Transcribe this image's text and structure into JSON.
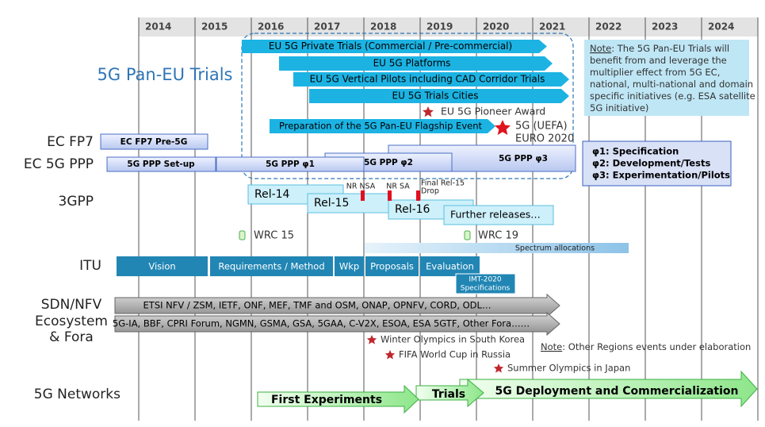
{
  "years": [
    "2014",
    "2015",
    "2016",
    "2017",
    "2018",
    "2019",
    "2020",
    "2021",
    "2022",
    "2023",
    "2024"
  ],
  "rows": {
    "pan_eu": "5G Pan-EU Trials",
    "fp7": "EC FP7",
    "ppp": "EC 5G PPP",
    "gpp": "3GPP",
    "itu": "ITU",
    "sdn": [
      "SDN/NFV",
      "Ecosystem",
      "& Fora"
    ],
    "networks": "5G Networks"
  },
  "trials": [
    "EU 5G Private Trials (Commercial / Pre-commercial)",
    "EU 5G Platforms",
    "EU 5G Vertical Pilots including CAD Corridor Trials",
    "EU 5G Trials Cities"
  ],
  "pioneer": "EU 5G Pioneer Award",
  "flagship": "Preparation of the 5G Pan-EU Flagship Event",
  "euro": [
    "5G (UEFA)",
    "EURO 2020"
  ],
  "note": {
    "label": "Note",
    "lines": [
      ": The 5G Pan-EU Trials will",
      "benefit from and leverage the",
      "multiplier effect from 5G EC,",
      "national, multi-national and domain",
      "specific initiatives (e.g. ESA satellite",
      "5G initiative)"
    ]
  },
  "fp7_box": "EC FP7 Pre-5G",
  "ppp_phases": [
    "5G PPP Set-up",
    "5G PPP φ1",
    "5G PPP φ2",
    "5G PPP φ3"
  ],
  "phase_legend": [
    "φ1: Specification",
    "φ2: Development/Tests",
    "φ3: Experimentation/Pilots"
  ],
  "releases": [
    "Rel-14",
    "Rel-15",
    "Rel-16",
    "Further releases…"
  ],
  "milestones": [
    "NR NSA",
    "NR SA",
    "Final Rel-15",
    "Drop"
  ],
  "wrc": [
    "WRC 15",
    "WRC 19"
  ],
  "spectrum": "Spectrum allocations",
  "itu_phases": [
    "Vision",
    "Requirements / Method",
    "Wkp",
    "Proposals",
    "Evaluation"
  ],
  "imt": [
    "IMT-2020",
    "Specifications"
  ],
  "fora": [
    "ETSI NFV / ZSM, IETF, ONF, MEF, TMF and OSM, ONAP, OPNFV, CORD, ODL…",
    "5G-IA, BBF, CPRI Forum, NGMN, GSMA, GSA, 5GAA, C-V2X, ESOA, ESA 5GTF, Other Fora……"
  ],
  "events": [
    "Winter Olympics in South Korea",
    "FIFA World Cup in Russia",
    "Summer Olympics in Japan"
  ],
  "note2": {
    "label": "Note",
    "text": ": Other Regions events under elaboration"
  },
  "network_phases": [
    "First Experiments",
    "Trials",
    "5G Deployment and Commercialization"
  ]
}
